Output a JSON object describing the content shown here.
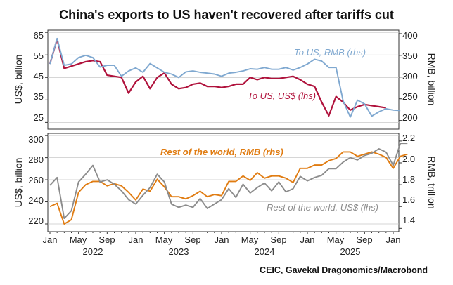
{
  "title": "China's exports to US haven't recovered after tariffs cut",
  "source": "CEIC, Gavekal Dragonomics/Macrobond",
  "colors": {
    "us_usd": "#b0123c",
    "us_rmb": "#7fa8d0",
    "row_rmb": "#e07c12",
    "row_usd": "#8c8c8c"
  },
  "x_axis": {
    "month_ticks": [
      "Jan",
      "May",
      "Sep",
      "Jan",
      "May",
      "Sep",
      "Jan",
      "May",
      "Sep",
      "Jan",
      "May",
      "Sep",
      "Jan"
    ],
    "years": [
      "2022",
      "2023",
      "2024",
      "2025"
    ]
  },
  "chart_data": [
    {
      "type": "line",
      "name": "top",
      "ylabel": "US$, billion",
      "y2label": "RMB, billion",
      "ylim": [
        22,
        66
      ],
      "y2lim": [
        180,
        408
      ],
      "yticks": [
        "25",
        "35",
        "45",
        "55",
        "65"
      ],
      "y2ticks": [
        "200",
        "250",
        "300",
        "350",
        "400"
      ],
      "series": [
        {
          "name": "To US, US$ (lhs)",
          "axis": "left",
          "color": "#b0123c",
          "values": [
            51,
            62,
            49,
            50,
            51,
            52,
            52.5,
            52,
            46,
            45.5,
            45,
            38,
            43,
            45.5,
            40,
            45,
            47,
            42,
            40,
            40.5,
            42,
            42.5,
            41,
            41,
            40.5,
            41,
            42,
            42,
            45,
            44,
            45,
            44.5,
            44.5,
            45,
            45.5,
            44,
            42,
            41,
            34,
            28,
            36.5,
            34,
            30.5,
            32,
            33,
            32.5,
            32,
            31.5
          ]
        },
        {
          "name": "To US, RMB (rhs)",
          "axis": "right",
          "color": "#7fa8d0",
          "values": [
            330,
            389,
            327,
            330,
            345,
            350,
            345,
            323,
            327,
            327,
            302,
            314,
            321,
            311,
            331,
            321,
            311,
            307,
            299,
            312,
            314,
            311,
            309,
            307,
            302,
            309,
            311,
            314,
            319,
            318,
            322,
            318,
            318,
            322,
            316,
            322,
            330,
            341,
            337,
            322,
            322,
            245,
            208,
            247,
            238,
            210,
            220,
            227,
            224,
            223
          ]
        }
      ]
    },
    {
      "type": "line",
      "name": "bottom",
      "ylabel": "US$, billion",
      "y2label": "RMB, trillion",
      "ylim": [
        213,
        302
      ],
      "y2lim": [
        1.37,
        2.27
      ],
      "yticks": [
        "220",
        "240",
        "260",
        "280",
        "300"
      ],
      "y2ticks": [
        "1.4",
        "1.6",
        "1.8",
        "2.0",
        "2.2"
      ],
      "series": [
        {
          "name": "Rest of the world, RMB (rhs)",
          "axis": "right",
          "color": "#e07c12",
          "values": [
            1.6,
            1.63,
            1.44,
            1.48,
            1.73,
            1.8,
            1.83,
            1.83,
            1.79,
            1.81,
            1.79,
            1.73,
            1.66,
            1.76,
            1.74,
            1.85,
            1.78,
            1.69,
            1.69,
            1.67,
            1.7,
            1.74,
            1.69,
            1.71,
            1.7,
            1.83,
            1.83,
            1.88,
            1.84,
            1.91,
            1.86,
            1.88,
            1.88,
            1.86,
            1.82,
            1.95,
            1.95,
            1.98,
            1.98,
            2.02,
            2.04,
            2.1,
            2.1,
            2.06,
            2.08,
            2.1,
            2.08,
            2.05,
            1.95,
            2.06,
            2.08
          ]
        },
        {
          "name": "Rest of the world, US$ (lhs)",
          "axis": "left",
          "color": "#8c8c8c",
          "values": [
            255,
            262,
            225,
            232,
            258,
            265,
            273,
            258,
            260,
            256,
            250,
            242,
            238,
            246,
            253,
            265,
            258,
            238,
            235,
            237,
            235,
            243,
            234,
            238,
            242,
            252,
            244,
            256,
            248,
            253,
            257,
            250,
            258,
            249,
            252,
            263,
            259,
            262,
            264,
            270,
            270,
            276,
            280,
            278,
            282,
            284,
            288,
            285,
            273,
            293,
            293
          ]
        }
      ]
    }
  ]
}
